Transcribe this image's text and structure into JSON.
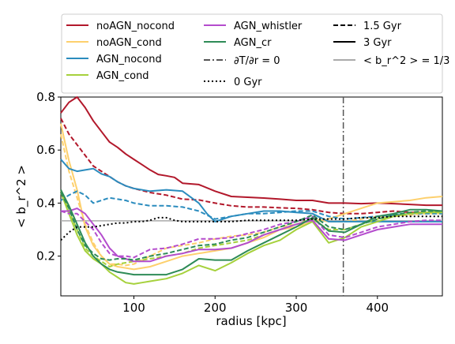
{
  "chart_data": {
    "type": "line",
    "xlabel": "radius [kpc]",
    "ylabel": "< b_r^2 >",
    "xlim": [
      10,
      480
    ],
    "ylim": [
      0.05,
      0.8
    ],
    "xticks": [
      100,
      200,
      300,
      400
    ],
    "yticks": [
      0.2,
      0.4,
      0.6,
      0.8
    ],
    "xtick_labels": [
      "100",
      "200",
      "300",
      "400"
    ],
    "ytick_labels": [
      "0.2",
      "0.4",
      "0.6",
      "0.8"
    ],
    "grid": false,
    "legend_position": "top",
    "legend": [
      {
        "label": "noAGN_nocond",
        "color": "#b2182b",
        "style": "solid"
      },
      {
        "label": "noAGN_cond",
        "color": "#fdd06d",
        "style": "solid"
      },
      {
        "label": "AGN_nocond",
        "color": "#2b8cbe",
        "style": "solid"
      },
      {
        "label": "AGN_cond",
        "color": "#a6d13c",
        "style": "solid"
      },
      {
        "label": "AGN_whistler",
        "color": "#b44ccd",
        "style": "solid"
      },
      {
        "label": "AGN_cr",
        "color": "#2e8b57",
        "style": "solid"
      },
      {
        "label": "∂T/∂r = 0",
        "color": "#555555",
        "style": "dashdot"
      },
      {
        "label": "0 Gyr",
        "color": "#000000",
        "style": "dotted"
      },
      {
        "label": "1.5 Gyr",
        "color": "#000000",
        "style": "dashed"
      },
      {
        "label": "3 Gyr",
        "color": "#000000",
        "style": "solid"
      },
      {
        "label": "< b_r^2 > = 1/3",
        "color": "#aaaaaa",
        "style": "solid"
      }
    ],
    "reference_lines": {
      "horizontal": {
        "y": 0.333,
        "color": "#aaaaaa"
      },
      "vertical": {
        "x": 358,
        "color": "#555555"
      }
    },
    "series": [
      {
        "sim": 0,
        "color": "#b2182b",
        "style": "solid",
        "x": [
          10,
          20,
          30,
          40,
          50,
          60,
          70,
          80,
          90,
          100,
          110,
          120,
          130,
          140,
          150,
          160,
          180,
          200,
          220,
          240,
          260,
          280,
          300,
          320,
          340,
          360,
          380,
          400,
          420,
          440,
          460,
          480
        ],
        "y": [
          0.74,
          0.78,
          0.8,
          0.76,
          0.71,
          0.67,
          0.63,
          0.61,
          0.585,
          0.565,
          0.545,
          0.525,
          0.508,
          0.503,
          0.497,
          0.475,
          0.47,
          0.445,
          0.425,
          0.422,
          0.419,
          0.415,
          0.41,
          0.41,
          0.4,
          0.4,
          0.398,
          0.4,
          0.398,
          0.395,
          0.392,
          0.392
        ]
      },
      {
        "sim": 0,
        "color": "#b2182b",
        "style": "dashed",
        "x": [
          10,
          20,
          30,
          40,
          50,
          60,
          70,
          80,
          90,
          100,
          120,
          140,
          160,
          180,
          200,
          220,
          240,
          260,
          280,
          300,
          320,
          340,
          360,
          380,
          400,
          420,
          440,
          460,
          480
        ],
        "y": [
          0.72,
          0.66,
          0.62,
          0.58,
          0.54,
          0.52,
          0.5,
          0.48,
          0.465,
          0.455,
          0.44,
          0.43,
          0.415,
          0.412,
          0.4,
          0.39,
          0.385,
          0.385,
          0.382,
          0.38,
          0.375,
          0.365,
          0.36,
          0.36,
          0.365,
          0.37,
          0.365,
          0.365,
          0.365
        ]
      },
      {
        "sim": 1,
        "color": "#fdd06d",
        "style": "solid",
        "x": [
          10,
          20,
          30,
          40,
          50,
          60,
          70,
          80,
          90,
          100,
          120,
          140,
          160,
          180,
          200,
          220,
          240,
          260,
          280,
          300,
          320,
          340,
          360,
          380,
          400,
          420,
          440,
          460,
          480
        ],
        "y": [
          0.7,
          0.56,
          0.45,
          0.31,
          0.24,
          0.2,
          0.17,
          0.16,
          0.155,
          0.15,
          0.16,
          0.18,
          0.2,
          0.21,
          0.22,
          0.23,
          0.25,
          0.27,
          0.3,
          0.31,
          0.33,
          0.34,
          0.36,
          0.38,
          0.4,
          0.405,
          0.41,
          0.42,
          0.425
        ]
      },
      {
        "sim": 1,
        "color": "#fdd06d",
        "style": "dashed",
        "x": [
          10,
          20,
          30,
          40,
          50,
          60,
          70,
          80,
          90,
          100,
          120,
          140,
          160,
          180,
          200,
          220,
          240,
          260,
          280,
          300,
          320,
          340,
          360,
          380,
          400,
          420,
          440,
          460,
          480
        ],
        "y": [
          0.66,
          0.52,
          0.42,
          0.32,
          0.25,
          0.2,
          0.17,
          0.17,
          0.165,
          0.17,
          0.2,
          0.23,
          0.24,
          0.25,
          0.265,
          0.275,
          0.28,
          0.29,
          0.31,
          0.32,
          0.34,
          0.33,
          0.33,
          0.34,
          0.35,
          0.35,
          0.355,
          0.36,
          0.36
        ]
      },
      {
        "sim": 2,
        "color": "#2b8cbe",
        "style": "solid",
        "x": [
          10,
          20,
          30,
          40,
          50,
          60,
          70,
          80,
          90,
          100,
          120,
          140,
          160,
          180,
          190,
          200,
          220,
          240,
          260,
          280,
          300,
          320,
          340,
          360,
          380,
          400,
          420,
          440,
          460,
          480
        ],
        "y": [
          0.565,
          0.53,
          0.52,
          0.525,
          0.53,
          0.51,
          0.5,
          0.48,
          0.465,
          0.455,
          0.445,
          0.45,
          0.445,
          0.4,
          0.36,
          0.33,
          0.35,
          0.36,
          0.37,
          0.37,
          0.365,
          0.36,
          0.33,
          0.33,
          0.33,
          0.33,
          0.33,
          0.33,
          0.33,
          0.33
        ]
      },
      {
        "sim": 2,
        "color": "#2b8cbe",
        "style": "dashed",
        "x": [
          10,
          20,
          30,
          40,
          50,
          60,
          70,
          80,
          90,
          100,
          120,
          140,
          160,
          180,
          200,
          220,
          240,
          260,
          280,
          300,
          320,
          340,
          360,
          380,
          400,
          420,
          440,
          460,
          480
        ],
        "y": [
          0.41,
          0.43,
          0.445,
          0.43,
          0.4,
          0.41,
          0.42,
          0.415,
          0.41,
          0.4,
          0.39,
          0.39,
          0.385,
          0.37,
          0.34,
          0.35,
          0.36,
          0.36,
          0.365,
          0.37,
          0.37,
          0.35,
          0.34,
          0.345,
          0.35,
          0.355,
          0.36,
          0.36,
          0.36
        ]
      },
      {
        "sim": 3,
        "color": "#a6d13c",
        "style": "solid",
        "x": [
          10,
          20,
          30,
          40,
          50,
          60,
          70,
          80,
          90,
          100,
          110,
          120,
          140,
          160,
          180,
          200,
          220,
          240,
          260,
          280,
          300,
          320,
          340,
          360,
          380,
          400,
          420,
          440,
          460,
          480
        ],
        "y": [
          0.44,
          0.36,
          0.28,
          0.22,
          0.19,
          0.17,
          0.14,
          0.12,
          0.1,
          0.095,
          0.1,
          0.105,
          0.115,
          0.135,
          0.165,
          0.145,
          0.175,
          0.21,
          0.24,
          0.26,
          0.3,
          0.33,
          0.25,
          0.27,
          0.31,
          0.33,
          0.35,
          0.36,
          0.365,
          0.365
        ]
      },
      {
        "sim": 3,
        "color": "#a6d13c",
        "style": "dashed",
        "x": [
          10,
          20,
          30,
          40,
          50,
          60,
          70,
          80,
          90,
          100,
          120,
          140,
          160,
          180,
          200,
          220,
          240,
          260,
          280,
          300,
          320,
          340,
          360,
          380,
          400,
          420,
          440,
          460,
          480
        ],
        "y": [
          0.45,
          0.37,
          0.3,
          0.23,
          0.2,
          0.18,
          0.16,
          0.17,
          0.175,
          0.18,
          0.19,
          0.2,
          0.21,
          0.23,
          0.24,
          0.25,
          0.26,
          0.28,
          0.3,
          0.32,
          0.34,
          0.3,
          0.3,
          0.32,
          0.34,
          0.35,
          0.36,
          0.365,
          0.37
        ]
      },
      {
        "sim": 4,
        "color": "#b44ccd",
        "style": "solid",
        "x": [
          10,
          20,
          30,
          40,
          50,
          60,
          70,
          80,
          90,
          100,
          120,
          140,
          160,
          180,
          200,
          220,
          240,
          260,
          280,
          300,
          320,
          340,
          360,
          380,
          400,
          420,
          440,
          460,
          480
        ],
        "y": [
          0.37,
          0.37,
          0.38,
          0.36,
          0.32,
          0.28,
          0.23,
          0.2,
          0.19,
          0.18,
          0.18,
          0.2,
          0.21,
          0.225,
          0.225,
          0.23,
          0.25,
          0.28,
          0.3,
          0.32,
          0.335,
          0.265,
          0.26,
          0.28,
          0.3,
          0.31,
          0.32,
          0.32,
          0.32
        ]
      },
      {
        "sim": 4,
        "color": "#b44ccd",
        "style": "dashed",
        "x": [
          10,
          20,
          30,
          40,
          50,
          60,
          70,
          80,
          90,
          100,
          120,
          140,
          160,
          180,
          200,
          220,
          240,
          260,
          280,
          300,
          320,
          340,
          360,
          380,
          400,
          420,
          440,
          460,
          480
        ],
        "y": [
          0.37,
          0.36,
          0.36,
          0.33,
          0.3,
          0.25,
          0.21,
          0.2,
          0.2,
          0.195,
          0.225,
          0.23,
          0.245,
          0.265,
          0.265,
          0.27,
          0.285,
          0.3,
          0.32,
          0.33,
          0.35,
          0.28,
          0.27,
          0.29,
          0.31,
          0.32,
          0.33,
          0.335,
          0.335
        ]
      },
      {
        "sim": 5,
        "color": "#2e8b57",
        "style": "solid",
        "x": [
          10,
          20,
          30,
          40,
          50,
          60,
          70,
          80,
          90,
          100,
          120,
          140,
          160,
          180,
          200,
          220,
          240,
          260,
          280,
          300,
          320,
          340,
          360,
          380,
          400,
          420,
          440,
          460,
          480
        ],
        "y": [
          0.45,
          0.39,
          0.32,
          0.25,
          0.2,
          0.17,
          0.15,
          0.14,
          0.135,
          0.13,
          0.13,
          0.13,
          0.15,
          0.19,
          0.185,
          0.185,
          0.22,
          0.25,
          0.28,
          0.31,
          0.345,
          0.295,
          0.29,
          0.32,
          0.35,
          0.36,
          0.375,
          0.375,
          0.37
        ]
      },
      {
        "sim": 5,
        "color": "#2e8b57",
        "style": "dashed",
        "x": [
          10,
          20,
          30,
          40,
          50,
          60,
          70,
          80,
          90,
          100,
          120,
          140,
          160,
          180,
          200,
          220,
          240,
          260,
          280,
          300,
          320,
          340,
          360,
          380,
          400,
          420,
          440,
          460,
          480
        ],
        "y": [
          0.44,
          0.38,
          0.3,
          0.24,
          0.21,
          0.19,
          0.185,
          0.19,
          0.19,
          0.185,
          0.2,
          0.21,
          0.225,
          0.24,
          0.245,
          0.26,
          0.27,
          0.29,
          0.31,
          0.33,
          0.355,
          0.31,
          0.3,
          0.32,
          0.34,
          0.355,
          0.365,
          0.37,
          0.37
        ]
      },
      {
        "sim": 6,
        "color": "#000000",
        "style": "dotted",
        "x": [
          10,
          20,
          30,
          40,
          50,
          60,
          70,
          80,
          90,
          100,
          110,
          120,
          130,
          140,
          150,
          160,
          180,
          200,
          220,
          240,
          260,
          280,
          300,
          320,
          340,
          360,
          380,
          400,
          420,
          440,
          460,
          480
        ],
        "y": [
          0.26,
          0.29,
          0.31,
          0.31,
          0.31,
          0.315,
          0.32,
          0.325,
          0.325,
          0.33,
          0.33,
          0.335,
          0.345,
          0.345,
          0.335,
          0.33,
          0.33,
          0.33,
          0.33,
          0.335,
          0.335,
          0.335,
          0.335,
          0.34,
          0.34,
          0.34,
          0.345,
          0.345,
          0.35,
          0.35,
          0.35,
          0.35
        ]
      }
    ]
  }
}
